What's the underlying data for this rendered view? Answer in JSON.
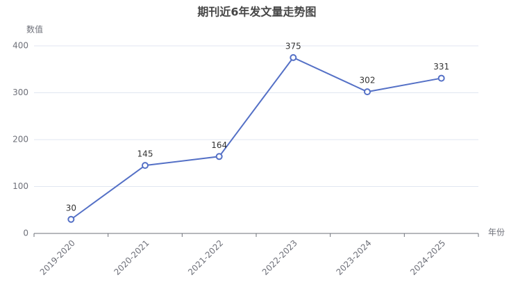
{
  "chart_data": {
    "type": "line",
    "title": "期刊近6年发文量走势图",
    "x_label": "年份",
    "y_label": "数值",
    "categories": [
      "2019-2020",
      "2020-2021",
      "2021-2022",
      "2022-2023",
      "2023-2024",
      "2024-2025"
    ],
    "values": [
      30,
      145,
      164,
      375,
      302,
      331
    ],
    "color": "#5470c6",
    "ylim": [
      0,
      400
    ],
    "yticks": [
      0,
      100,
      200,
      300,
      400
    ],
    "grid": true
  }
}
